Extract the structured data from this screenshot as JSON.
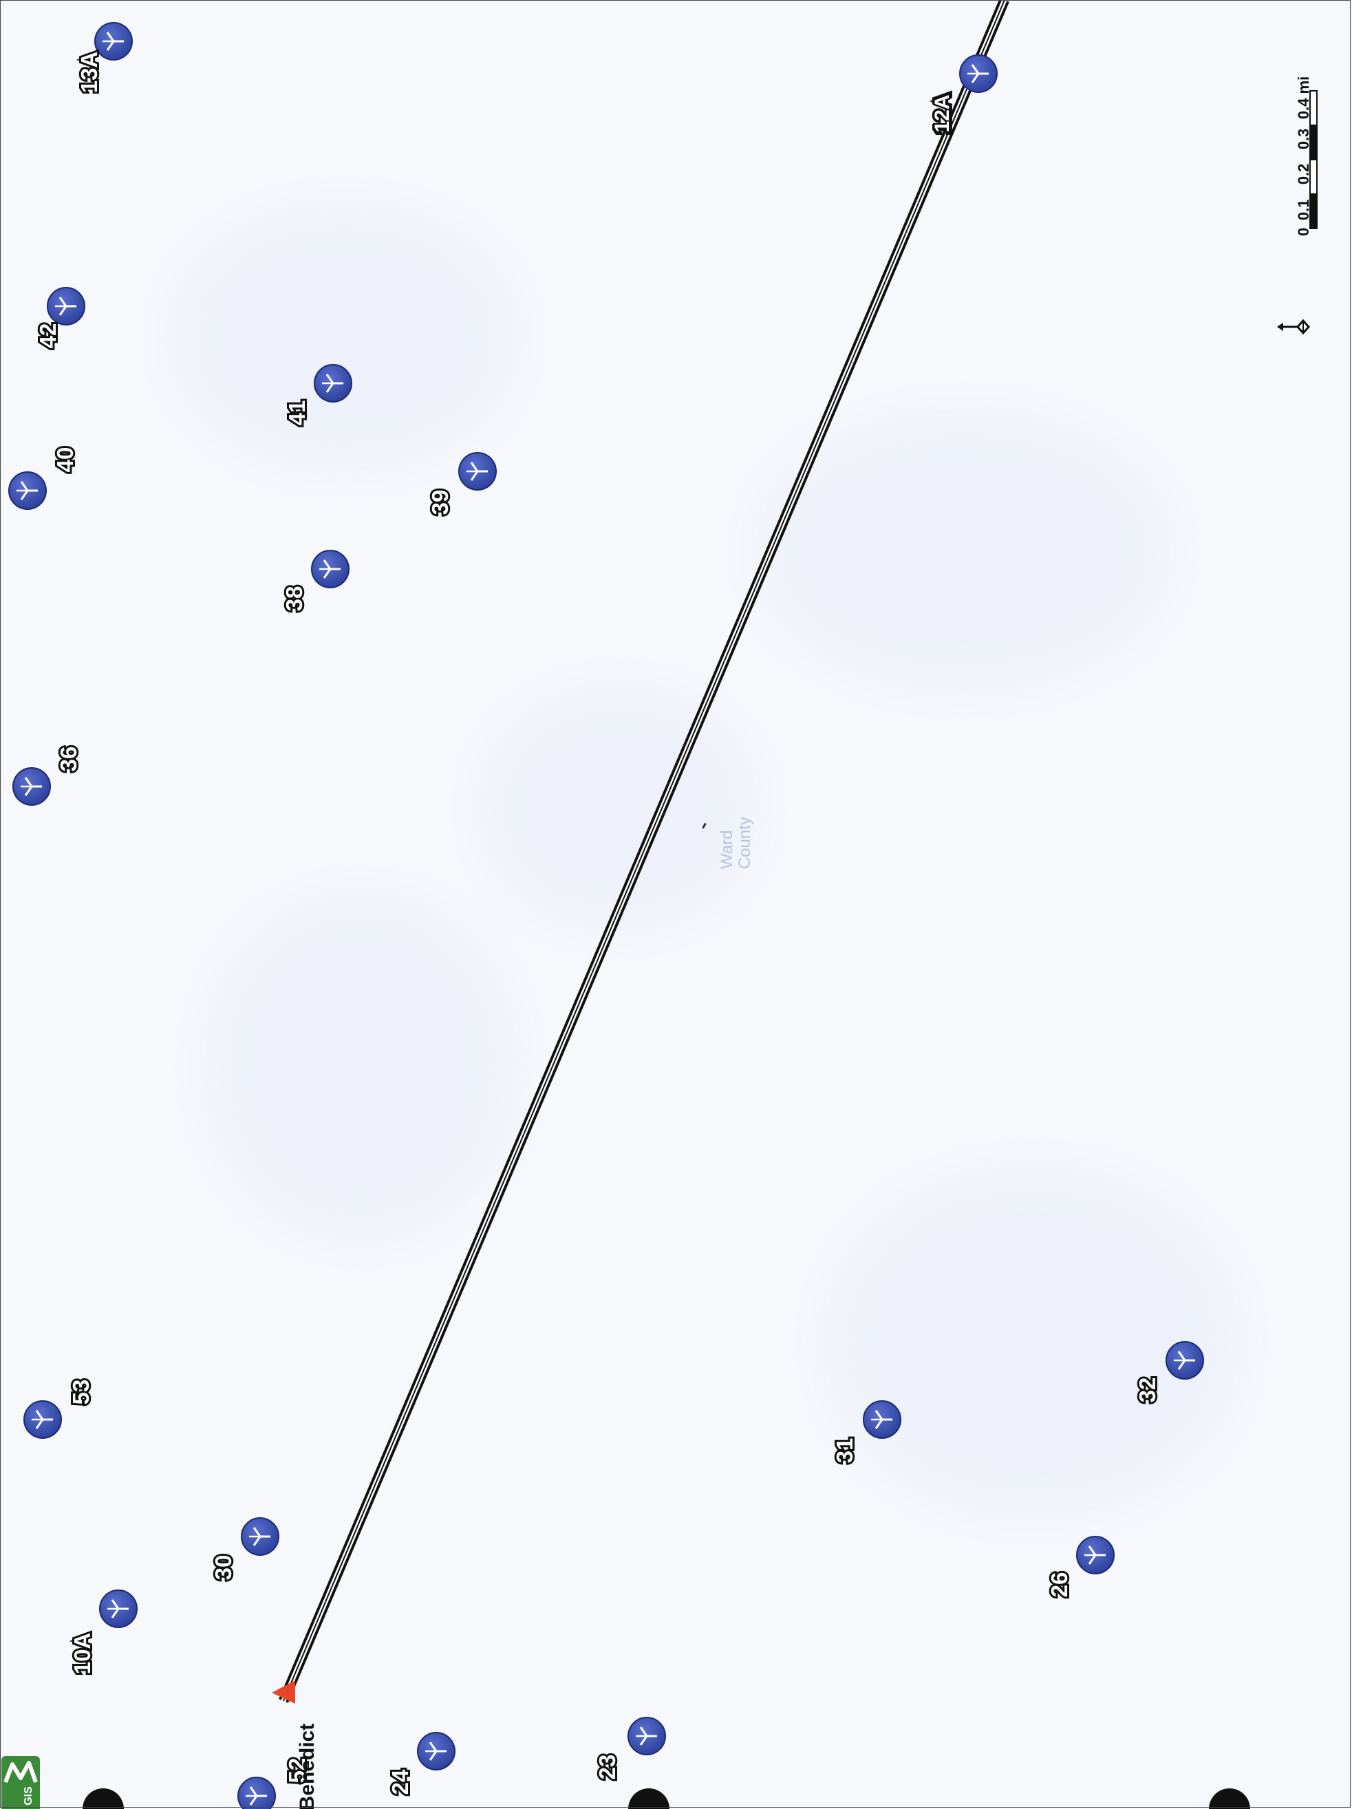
{
  "map": {
    "county_label": "Ward County",
    "county_label_lines": [
      "Ward",
      "County"
    ],
    "place_name": "Benedict",
    "route_label": "12A",
    "logo_text": "GIS",
    "scale": {
      "ticks": [
        "0",
        "0.1",
        "0.2",
        "0.3",
        "0.4 mi"
      ]
    },
    "colors": {
      "background": "#f7f8fc",
      "turbine_fill": "#2b3f9a",
      "route_line": "#111111",
      "place_marker": "#e8442a",
      "logo": "#3a8a3a"
    },
    "icons": [
      "wind-turbine-icon",
      "place-marker-icon",
      "north-arrow-icon",
      "gis-logo-icon"
    ]
  },
  "turbines": [
    {
      "label": "13A"
    },
    {
      "label": "12A"
    },
    {
      "label": "42"
    },
    {
      "label": "41"
    },
    {
      "label": "40"
    },
    {
      "label": "39"
    },
    {
      "label": "38"
    },
    {
      "label": "36"
    },
    {
      "label": "53"
    },
    {
      "label": "31"
    },
    {
      "label": "32"
    },
    {
      "label": "30"
    },
    {
      "label": "26"
    },
    {
      "label": "10A"
    },
    {
      "label": "24"
    },
    {
      "label": "23"
    },
    {
      "label": "52"
    }
  ]
}
